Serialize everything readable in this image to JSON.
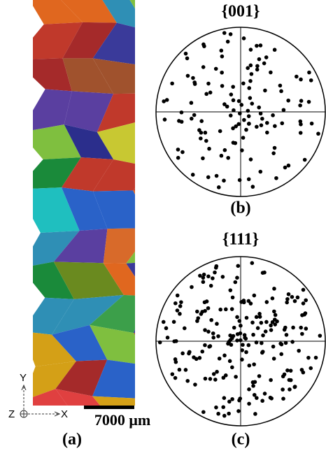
{
  "panel_a": {
    "label": "(a)",
    "scale_bar": "7000 μm",
    "axes": {
      "y": "Y",
      "z": "Z",
      "x": "X"
    }
  },
  "panel_b": {
    "title": "{001}",
    "label": "(b)"
  },
  "panel_c": {
    "title": "{111}",
    "label": "(c)"
  }
}
